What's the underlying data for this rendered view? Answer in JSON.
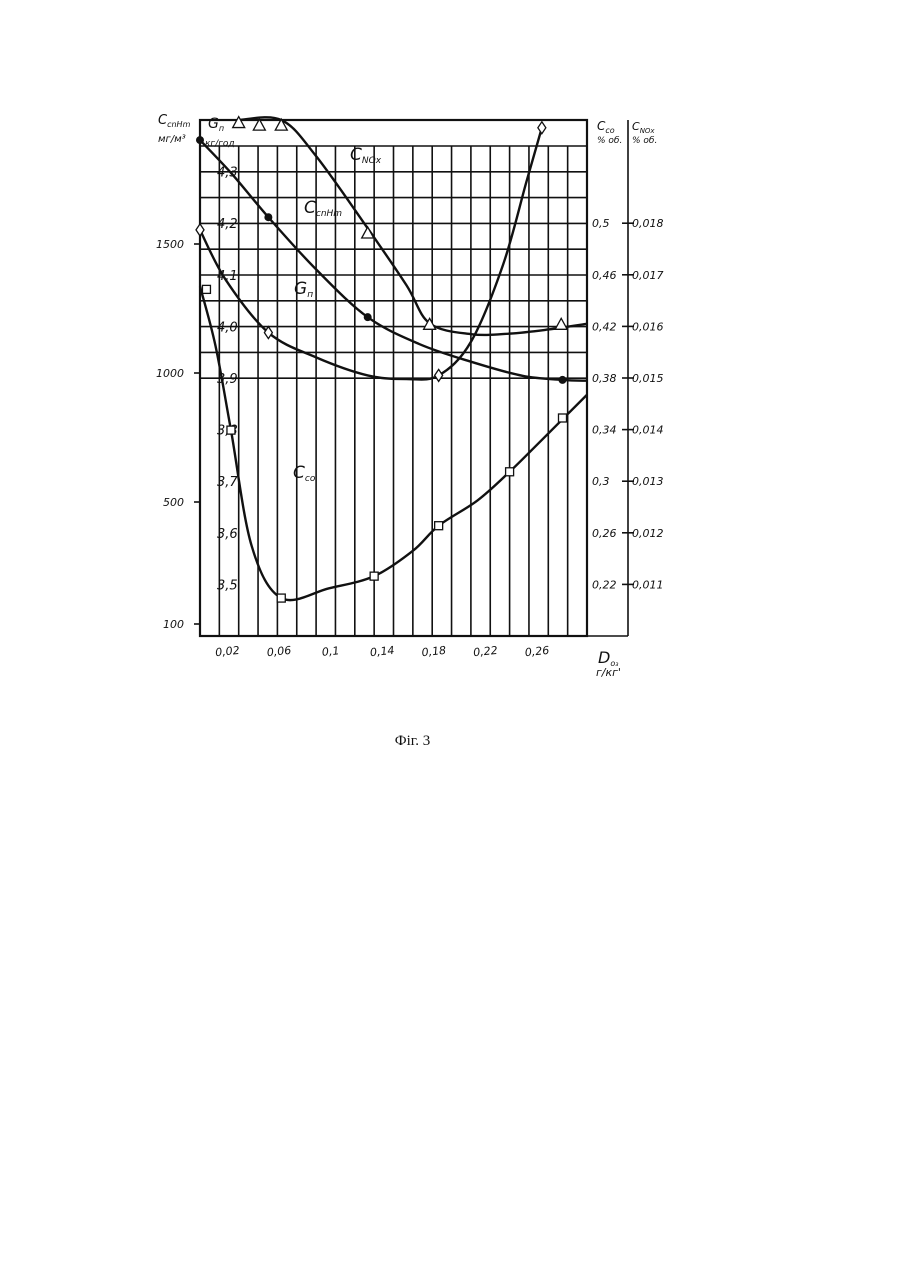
{
  "figure": {
    "caption": "Фіг. 3"
  },
  "chart_data": {
    "type": "line",
    "x_axis": {
      "label": "D",
      "label_sub": "o₃",
      "unit": "г/кг'",
      "ticks": [
        0.02,
        0.06,
        0.1,
        0.14,
        0.18,
        0.22,
        0.26
      ],
      "tick_labels": [
        "0,02",
        "0,06",
        "0,1",
        "0,14",
        "0,18",
        "0,22",
        "0,26"
      ],
      "range": [
        0.0,
        0.3
      ]
    },
    "y_axes": [
      {
        "id": "cnhm",
        "label": "C",
        "label_sub": "cnHm",
        "unit": "мг/м³",
        "tick_labels": [
          "1500",
          "1000",
          "500",
          "100"
        ],
        "ticks": [
          1500,
          1000,
          500,
          100
        ],
        "range": [
          0,
          1900
        ]
      },
      {
        "id": "gp",
        "label": "G",
        "label_sub": "п",
        "unit": "кг/год",
        "tick_labels": [
          "4,3",
          "4,2",
          "4,1",
          "4,0",
          "3,9",
          "3,8",
          "3,7",
          "3,6",
          "3,5"
        ],
        "ticks": [
          4.3,
          4.2,
          4.1,
          4.0,
          3.9,
          3.8,
          3.7,
          3.6,
          3.5
        ],
        "range": [
          3.4,
          4.4
        ]
      },
      {
        "id": "cco",
        "label": "C",
        "label_sub": "co",
        "unit": "% об.",
        "tick_labels": [
          "0,5",
          "0,46",
          "0,42",
          "0,38",
          "0,34",
          "0,3",
          "0,26",
          "0,22"
        ],
        "ticks": [
          0.5,
          0.46,
          0.42,
          0.38,
          0.34,
          0.3,
          0.26,
          0.22
        ],
        "range": [
          0.18,
          0.58
        ]
      },
      {
        "id": "cnox",
        "label": "C",
        "label_sub": "NOx",
        "unit": "% об.",
        "tick_labels": [
          "0,018",
          "0,017",
          "0,016",
          "0,015",
          "0,014",
          "0,013",
          "0,012",
          "0,011"
        ],
        "ticks": [
          0.018,
          0.017,
          0.016,
          0.015,
          0.014,
          0.013,
          0.012,
          0.011
        ],
        "range": [
          0.01,
          0.02
        ]
      }
    ],
    "series": [
      {
        "name": "C",
        "name_sub": "NOx",
        "axis": "cnox",
        "marker": "triangle",
        "points": [
          [
            0.03,
            0.01995
          ],
          [
            0.046,
            0.0199
          ],
          [
            0.063,
            0.0199
          ],
          [
            0.13,
            0.01781
          ],
          [
            0.178,
            0.01604
          ],
          [
            0.28,
            0.01604
          ]
        ],
        "curve": [
          [
            0.03,
            0.02
          ],
          [
            0.063,
            0.02
          ],
          [
            0.09,
            0.0193
          ],
          [
            0.13,
            0.0179
          ],
          [
            0.16,
            0.0168
          ],
          [
            0.178,
            0.01606
          ],
          [
            0.21,
            0.01585
          ],
          [
            0.24,
            0.01586
          ],
          [
            0.27,
            0.01594
          ],
          [
            0.3,
            0.01605
          ]
        ]
      },
      {
        "name": "C",
        "name_sub": "cnHm",
        "axis": "cnhm",
        "marker": "dot",
        "points": [
          [
            0.0,
            1826
          ],
          [
            0.053,
            1542
          ],
          [
            0.13,
            1174
          ],
          [
            0.281,
            943
          ]
        ],
        "curve": [
          [
            0.0,
            1826
          ],
          [
            0.025,
            1700
          ],
          [
            0.053,
            1542
          ],
          [
            0.09,
            1350
          ],
          [
            0.13,
            1174
          ],
          [
            0.17,
            1075
          ],
          [
            0.21,
            1010
          ],
          [
            0.25,
            958
          ],
          [
            0.281,
            943
          ],
          [
            0.3,
            940
          ]
        ]
      },
      {
        "name": "G",
        "name_sub": "п",
        "axis": "gp",
        "marker": "diamond",
        "points": [
          [
            0.0,
            4.187
          ],
          [
            0.053,
            3.988
          ],
          [
            0.185,
            3.905
          ],
          [
            0.265,
            4.385
          ]
        ],
        "curve": [
          [
            0.0,
            4.187
          ],
          [
            0.02,
            4.09
          ],
          [
            0.053,
            3.988
          ],
          [
            0.09,
            3.94
          ],
          [
            0.13,
            3.905
          ],
          [
            0.16,
            3.898
          ],
          [
            0.185,
            3.905
          ],
          [
            0.21,
            3.97
          ],
          [
            0.235,
            4.12
          ],
          [
            0.253,
            4.28
          ],
          [
            0.265,
            4.385
          ]
        ]
      },
      {
        "name": "C",
        "name_sub": "co",
        "axis": "cco",
        "marker": "square",
        "points": [
          [
            0.005,
            0.4487
          ],
          [
            0.024,
            0.3396
          ],
          [
            0.063,
            0.2094
          ],
          [
            0.135,
            0.2264
          ],
          [
            0.185,
            0.2655
          ],
          [
            0.24,
            0.3073
          ],
          [
            0.281,
            0.349
          ]
        ],
        "curve": [
          [
            0.0,
            0.451
          ],
          [
            0.012,
            0.405
          ],
          [
            0.024,
            0.3396
          ],
          [
            0.04,
            0.25
          ],
          [
            0.063,
            0.2094
          ],
          [
            0.1,
            0.217
          ],
          [
            0.135,
            0.2264
          ],
          [
            0.165,
            0.246
          ],
          [
            0.185,
            0.2655
          ],
          [
            0.215,
            0.285
          ],
          [
            0.24,
            0.3073
          ],
          [
            0.265,
            0.332
          ],
          [
            0.3,
            0.367
          ]
        ]
      }
    ],
    "grid": true
  }
}
